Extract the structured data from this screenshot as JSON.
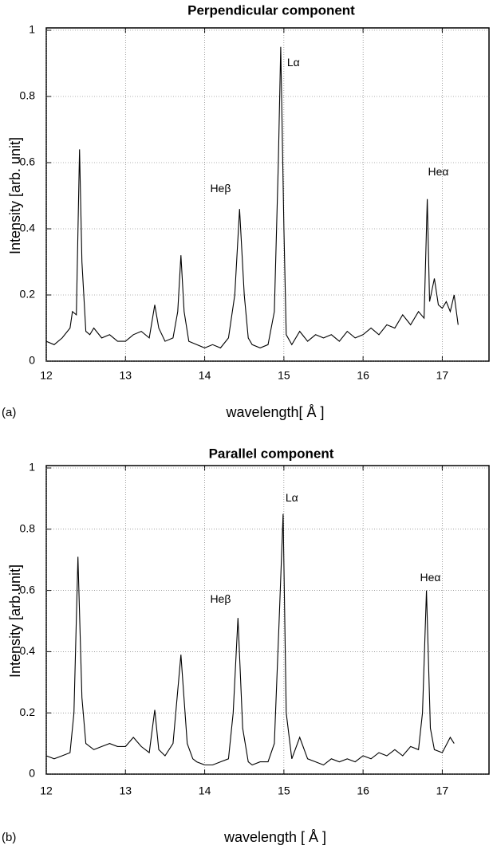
{
  "chart_data": [
    {
      "type": "line",
      "panel_label": "(a)",
      "title": "Perpendicular component",
      "xlabel": "wavelength[ Å ]",
      "ylabel": "Intensity [arb. unit]",
      "x": [
        12.0,
        12.1,
        12.2,
        12.3,
        12.33,
        12.38,
        12.42,
        12.45,
        12.5,
        12.55,
        12.6,
        12.7,
        12.8,
        12.9,
        13.0,
        13.1,
        13.2,
        13.3,
        13.37,
        13.42,
        13.5,
        13.6,
        13.66,
        13.7,
        13.74,
        13.8,
        13.9,
        14.0,
        14.1,
        14.2,
        14.3,
        14.38,
        14.44,
        14.5,
        14.55,
        14.6,
        14.7,
        14.8,
        14.88,
        14.93,
        14.96,
        15.0,
        15.03,
        15.1,
        15.2,
        15.3,
        15.4,
        15.5,
        15.6,
        15.7,
        15.8,
        15.9,
        16.0,
        16.1,
        16.2,
        16.3,
        16.4,
        16.5,
        16.6,
        16.7,
        16.77,
        16.81,
        16.84,
        16.9,
        16.95,
        17.0,
        17.05,
        17.1,
        17.15,
        17.2
      ],
      "series": [
        {
          "color": "#000000",
          "values": [
            0.06,
            0.05,
            0.07,
            0.1,
            0.15,
            0.14,
            0.64,
            0.3,
            0.09,
            0.08,
            0.1,
            0.07,
            0.08,
            0.06,
            0.06,
            0.08,
            0.09,
            0.07,
            0.17,
            0.1,
            0.06,
            0.07,
            0.15,
            0.32,
            0.15,
            0.06,
            0.05,
            0.04,
            0.05,
            0.04,
            0.07,
            0.2,
            0.46,
            0.2,
            0.07,
            0.05,
            0.04,
            0.05,
            0.15,
            0.6,
            0.95,
            0.4,
            0.08,
            0.05,
            0.09,
            0.06,
            0.08,
            0.07,
            0.08,
            0.06,
            0.09,
            0.07,
            0.08,
            0.1,
            0.08,
            0.11,
            0.1,
            0.14,
            0.11,
            0.15,
            0.13,
            0.49,
            0.18,
            0.25,
            0.17,
            0.16,
            0.18,
            0.15,
            0.2,
            0.11
          ]
        }
      ],
      "xlim": [
        12,
        17.6
      ],
      "ylim": [
        0,
        1
      ],
      "xticks": [
        12,
        13,
        14,
        15,
        16,
        17
      ],
      "yticks": [
        0,
        0.2,
        0.4,
        0.6,
        0.8,
        1
      ],
      "grid": true,
      "annotations": [
        "Lα",
        "Heβ",
        "Heα"
      ]
    },
    {
      "type": "line",
      "panel_label": "(b)",
      "title": "Parallel component",
      "xlabel": "wavelength [ Å ]",
      "ylabel": "Intensity [arb.unit]",
      "x": [
        12.0,
        12.1,
        12.2,
        12.3,
        12.35,
        12.4,
        12.45,
        12.5,
        12.6,
        12.7,
        12.8,
        12.9,
        13.0,
        13.1,
        13.2,
        13.3,
        13.37,
        13.42,
        13.5,
        13.6,
        13.7,
        13.78,
        13.85,
        13.9,
        14.0,
        14.1,
        14.2,
        14.3,
        14.36,
        14.42,
        14.48,
        14.55,
        14.6,
        14.7,
        14.8,
        14.88,
        14.94,
        14.99,
        15.03,
        15.1,
        15.2,
        15.3,
        15.4,
        15.5,
        15.6,
        15.7,
        15.8,
        15.9,
        16.0,
        16.1,
        16.2,
        16.3,
        16.4,
        16.5,
        16.6,
        16.7,
        16.75,
        16.8,
        16.85,
        16.9,
        17.0,
        17.1,
        17.15
      ],
      "series": [
        {
          "color": "#000000",
          "values": [
            0.06,
            0.05,
            0.06,
            0.07,
            0.2,
            0.71,
            0.25,
            0.1,
            0.08,
            0.09,
            0.1,
            0.09,
            0.09,
            0.12,
            0.09,
            0.07,
            0.21,
            0.08,
            0.06,
            0.1,
            0.39,
            0.1,
            0.05,
            0.04,
            0.03,
            0.03,
            0.04,
            0.05,
            0.2,
            0.51,
            0.15,
            0.04,
            0.03,
            0.04,
            0.04,
            0.1,
            0.5,
            0.85,
            0.2,
            0.05,
            0.12,
            0.05,
            0.04,
            0.03,
            0.05,
            0.04,
            0.05,
            0.04,
            0.06,
            0.05,
            0.07,
            0.06,
            0.08,
            0.06,
            0.09,
            0.08,
            0.2,
            0.6,
            0.15,
            0.08,
            0.07,
            0.12,
            0.1
          ]
        }
      ],
      "xlim": [
        12,
        17.6
      ],
      "ylim": [
        0,
        1
      ],
      "xticks": [
        12,
        13,
        14,
        15,
        16,
        17
      ],
      "yticks": [
        0,
        0.2,
        0.4,
        0.6,
        0.8,
        1
      ],
      "grid": true,
      "annotations": [
        "Lα",
        "Heβ",
        "Heα"
      ]
    }
  ]
}
